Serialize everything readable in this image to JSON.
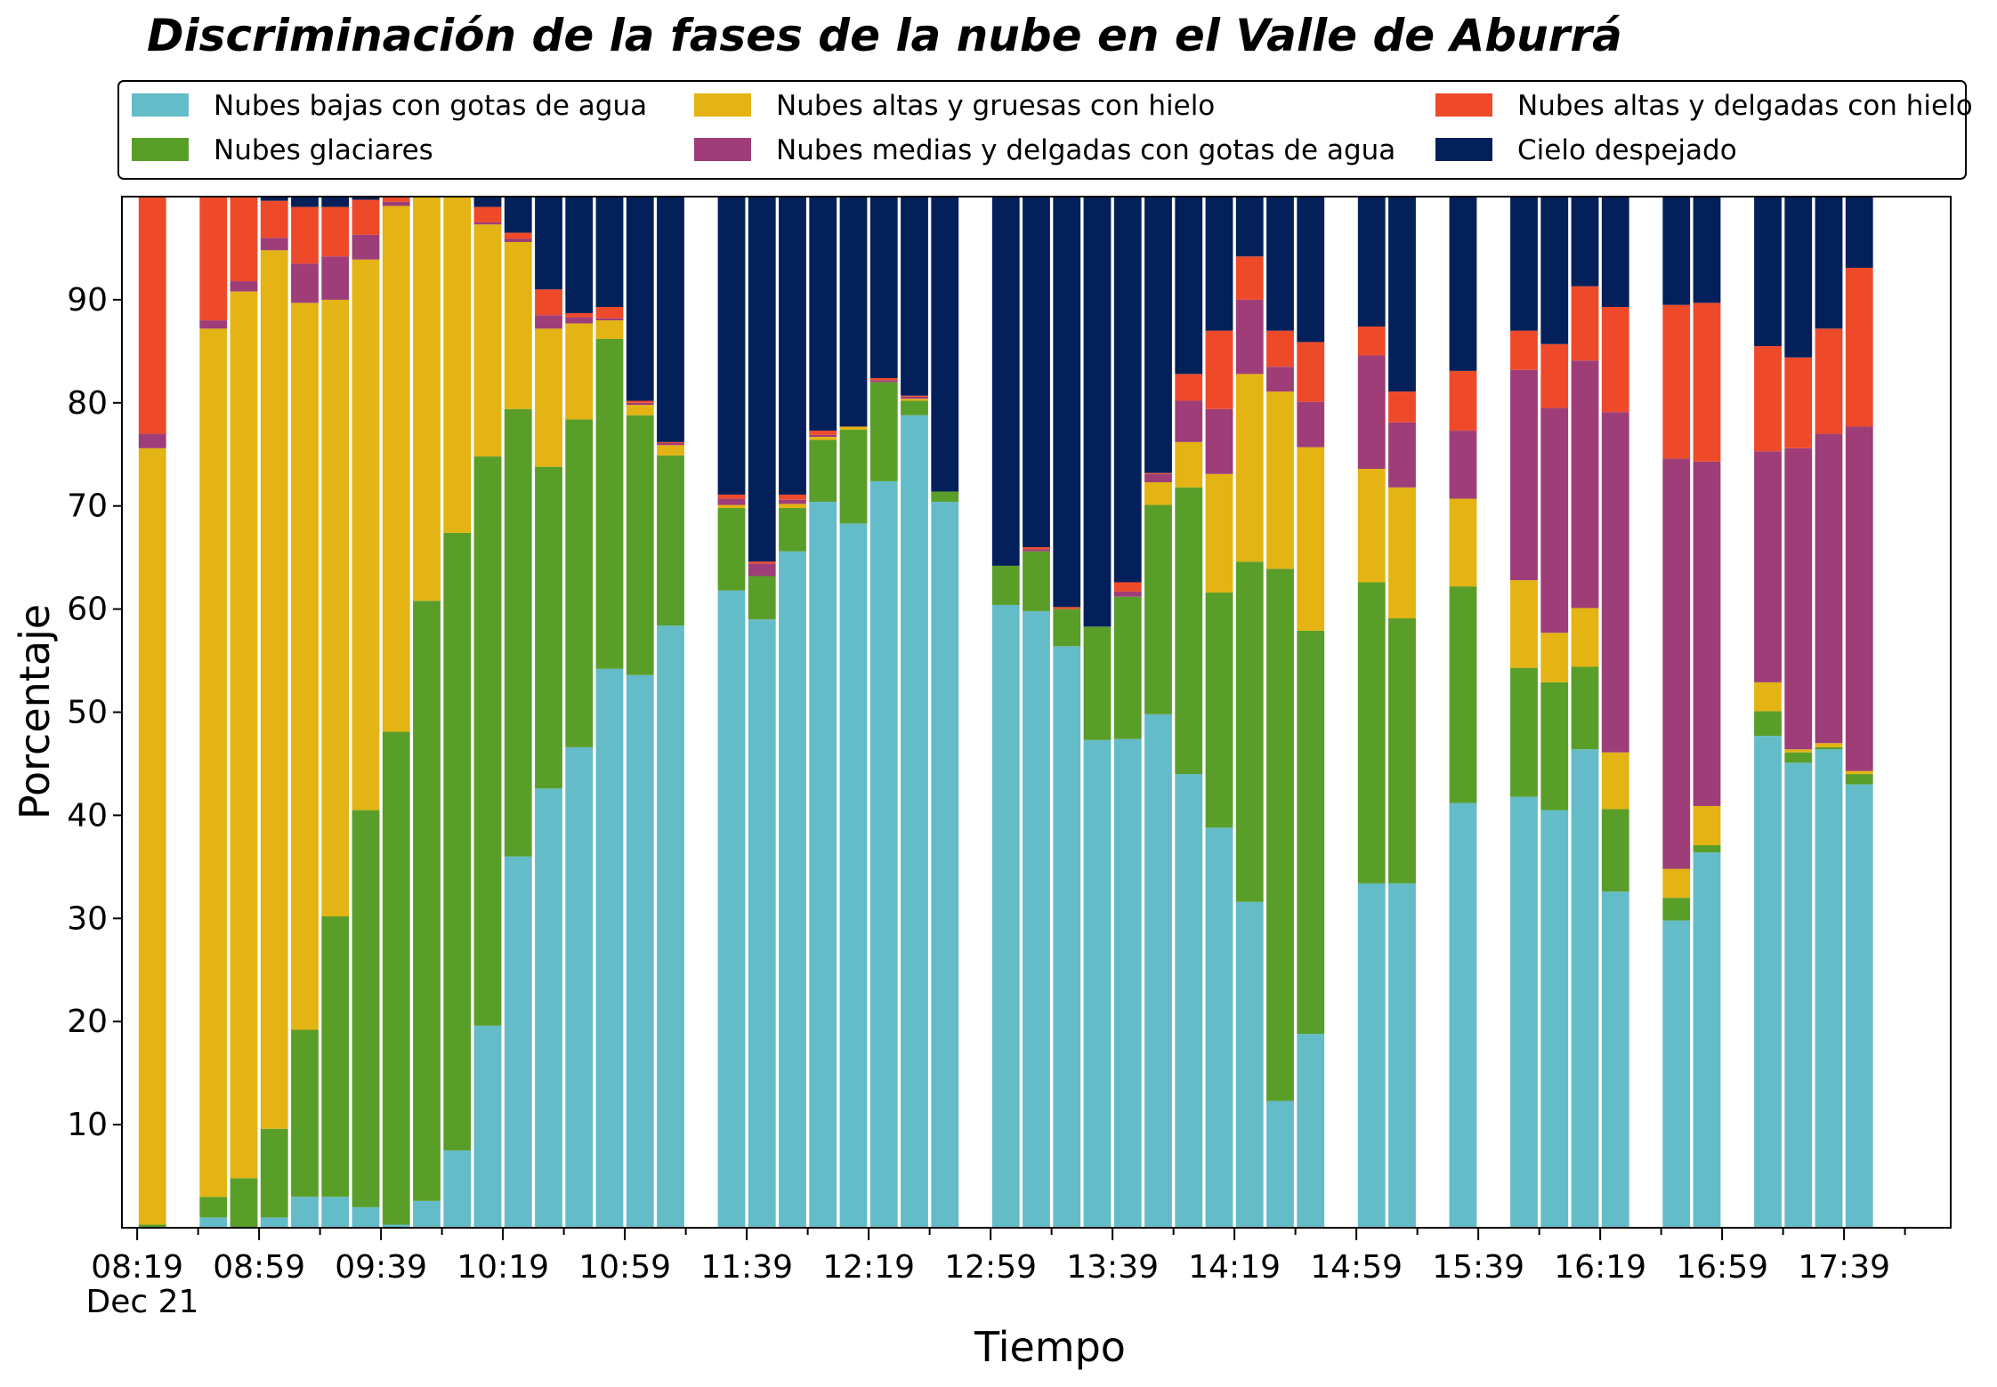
{
  "chart_data": {
    "type": "bar",
    "stacked": true,
    "title": "Discriminación de la fases de la nube en el Valle de Aburrá",
    "xlabel": "Tiempo",
    "ylabel": "Porcentaje",
    "ylim": [
      0,
      100
    ],
    "yticks": [
      10,
      20,
      30,
      40,
      50,
      60,
      70,
      80,
      90
    ],
    "x_tick_labels": [
      "08:19",
      "08:59",
      "09:39",
      "10:19",
      "10:59",
      "11:39",
      "12:19",
      "12:59",
      "13:39",
      "14:19",
      "14:59",
      "15:39",
      "16:19",
      "16:59",
      "17:39"
    ],
    "x_date_label": "Dec 21",
    "x_range": [
      "08:14",
      "18:14"
    ],
    "bar_interval_minutes": 10,
    "legend_position": "top",
    "series": [
      {
        "name": "Nubes bajas con gotas de agua",
        "color": "#64bcc8"
      },
      {
        "name": "Nubes glaciares",
        "color": "#5a9e2a"
      },
      {
        "name": "Nubes altas y gruesas con hielo",
        "color": "#e3b413"
      },
      {
        "name": "Nubes medias y delgadas con gotas de agua",
        "color": "#9e3d78"
      },
      {
        "name": "Nubes altas y delgadas con hielo",
        "color": "#ee4a2a"
      },
      {
        "name": "Cielo despejado",
        "color": "#04205a"
      }
    ],
    "bars": [
      {
        "time": "08:24",
        "values": [
          0,
          0.3,
          75.3,
          1.4,
          23.0,
          0
        ]
      },
      {
        "time": "08:34",
        "values": [
          0,
          0,
          0,
          0,
          0,
          0
        ]
      },
      {
        "time": "08:44",
        "values": [
          1.0,
          2.0,
          84.2,
          0.8,
          12.0,
          0
        ]
      },
      {
        "time": "08:54",
        "values": [
          0,
          4.8,
          86.0,
          1.0,
          8.2,
          0
        ]
      },
      {
        "time": "09:04",
        "values": [
          1.0,
          8.6,
          85.2,
          1.2,
          3.6,
          0.4
        ]
      },
      {
        "time": "09:14",
        "values": [
          3.0,
          16.2,
          70.5,
          3.8,
          5.5,
          1.0
        ]
      },
      {
        "time": "09:24",
        "values": [
          3.0,
          27.2,
          59.8,
          4.2,
          4.8,
          1.0
        ]
      },
      {
        "time": "09:34",
        "values": [
          2.0,
          38.5,
          53.4,
          2.4,
          3.4,
          0.3
        ]
      },
      {
        "time": "09:44",
        "values": [
          0.3,
          47.8,
          51.0,
          0.4,
          0.5,
          0
        ]
      },
      {
        "time": "09:54",
        "values": [
          2.6,
          58.2,
          39.2,
          0,
          0,
          0
        ]
      },
      {
        "time": "10:04",
        "values": [
          7.5,
          59.9,
          32.6,
          0,
          0,
          0
        ]
      },
      {
        "time": "10:14",
        "values": [
          19.6,
          55.2,
          22.5,
          0.2,
          1.5,
          1.0
        ]
      },
      {
        "time": "10:24",
        "values": [
          36.0,
          43.4,
          16.2,
          0.3,
          0.6,
          3.5
        ]
      },
      {
        "time": "10:34",
        "values": [
          42.6,
          31.2,
          13.4,
          1.3,
          2.5,
          9.0
        ]
      },
      {
        "time": "10:44",
        "values": [
          46.6,
          31.8,
          9.3,
          0.6,
          0.4,
          11.3
        ]
      },
      {
        "time": "10:54",
        "values": [
          54.2,
          32.0,
          1.8,
          0.2,
          1.1,
          10.7
        ]
      },
      {
        "time": "11:04",
        "values": [
          53.6,
          25.2,
          1.0,
          0.2,
          0.2,
          19.8
        ]
      },
      {
        "time": "11:14",
        "values": [
          58.4,
          16.5,
          1.0,
          0.2,
          0.1,
          23.8
        ]
      },
      {
        "time": "11:24",
        "values": [
          0,
          0,
          0,
          0,
          0,
          0
        ]
      },
      {
        "time": "11:34",
        "values": [
          61.8,
          8.0,
          0.3,
          0.6,
          0.4,
          28.9
        ]
      },
      {
        "time": "11:44",
        "values": [
          59.0,
          4.2,
          0,
          1.2,
          0.2,
          35.4
        ]
      },
      {
        "time": "11:54",
        "values": [
          65.6,
          4.2,
          0.4,
          0.4,
          0.5,
          28.9
        ]
      },
      {
        "time": "12:04",
        "values": [
          70.4,
          6.0,
          0.3,
          0.2,
          0.4,
          22.7
        ]
      },
      {
        "time": "12:14",
        "values": [
          68.3,
          9.1,
          0.3,
          0,
          0,
          22.3
        ]
      },
      {
        "time": "12:24",
        "values": [
          72.4,
          9.6,
          0,
          0.2,
          0.2,
          17.6
        ]
      },
      {
        "time": "12:34",
        "values": [
          78.8,
          1.4,
          0.2,
          0.2,
          0.1,
          19.3
        ]
      },
      {
        "time": "12:44",
        "values": [
          70.4,
          1.0,
          0,
          0,
          0,
          28.6
        ]
      },
      {
        "time": "12:54",
        "values": [
          0,
          0,
          0,
          0,
          0,
          0
        ]
      },
      {
        "time": "13:04",
        "values": [
          60.4,
          3.8,
          0,
          0,
          0,
          35.8
        ]
      },
      {
        "time": "13:14",
        "values": [
          59.8,
          5.8,
          0,
          0.2,
          0.2,
          34.0
        ]
      },
      {
        "time": "13:24",
        "values": [
          56.4,
          3.6,
          0,
          0,
          0.2,
          39.8
        ]
      },
      {
        "time": "13:34",
        "values": [
          47.3,
          11.0,
          0,
          0,
          0,
          41.7
        ]
      },
      {
        "time": "13:44",
        "values": [
          47.4,
          13.8,
          0,
          0.5,
          0.9,
          37.4
        ]
      },
      {
        "time": "13:54",
        "values": [
          49.8,
          20.3,
          2.2,
          0.8,
          0.1,
          26.8
        ]
      },
      {
        "time": "14:04",
        "values": [
          44.0,
          27.8,
          4.4,
          4.0,
          2.6,
          17.2
        ]
      },
      {
        "time": "14:14",
        "values": [
          38.8,
          22.8,
          11.5,
          6.3,
          7.6,
          13.0
        ]
      },
      {
        "time": "14:24",
        "values": [
          31.6,
          33.0,
          18.2,
          7.2,
          4.2,
          5.8
        ]
      },
      {
        "time": "14:34",
        "values": [
          12.3,
          51.6,
          17.2,
          2.4,
          3.5,
          13.0
        ]
      },
      {
        "time": "14:44",
        "values": [
          18.8,
          39.1,
          17.8,
          4.4,
          5.8,
          14.1
        ]
      },
      {
        "time": "14:54",
        "values": [
          0,
          0,
          0,
          0,
          0,
          0
        ]
      },
      {
        "time": "15:04",
        "values": [
          33.4,
          29.2,
          11.0,
          11.0,
          2.8,
          12.6
        ]
      },
      {
        "time": "15:14",
        "values": [
          33.4,
          25.7,
          12.7,
          6.3,
          3.0,
          18.9
        ]
      },
      {
        "time": "15:24",
        "values": [
          0,
          0,
          0,
          0,
          0,
          0
        ]
      },
      {
        "time": "15:34",
        "values": [
          41.2,
          21.0,
          8.5,
          6.6,
          5.8,
          16.9
        ]
      },
      {
        "time": "15:44",
        "values": [
          0,
          0,
          0,
          0,
          0,
          0
        ]
      },
      {
        "time": "15:54",
        "values": [
          41.8,
          12.5,
          8.5,
          20.4,
          3.8,
          13.0
        ]
      },
      {
        "time": "16:04",
        "values": [
          40.5,
          12.4,
          4.8,
          21.8,
          6.2,
          14.3
        ]
      },
      {
        "time": "16:14",
        "values": [
          46.4,
          8.0,
          5.7,
          24.0,
          7.2,
          8.7
        ]
      },
      {
        "time": "16:24",
        "values": [
          32.6,
          8.0,
          5.5,
          33.0,
          10.2,
          10.7
        ]
      },
      {
        "time": "16:34",
        "values": [
          0,
          0,
          0,
          0,
          0,
          0
        ]
      },
      {
        "time": "16:44",
        "values": [
          29.8,
          2.2,
          2.8,
          39.8,
          14.9,
          10.5
        ]
      },
      {
        "time": "16:54",
        "values": [
          36.4,
          0.7,
          3.8,
          33.4,
          15.4,
          10.3
        ]
      },
      {
        "time": "17:04",
        "values": [
          0,
          0,
          0,
          0,
          0,
          0
        ]
      },
      {
        "time": "17:14",
        "values": [
          47.7,
          2.4,
          2.8,
          22.4,
          10.2,
          14.5
        ]
      },
      {
        "time": "17:24",
        "values": [
          45.1,
          1.0,
          0.3,
          29.2,
          8.8,
          15.6
        ]
      },
      {
        "time": "17:34",
        "values": [
          46.4,
          0.2,
          0.4,
          30.0,
          10.2,
          12.8
        ]
      },
      {
        "time": "17:44",
        "values": [
          43.0,
          1.0,
          0.3,
          33.4,
          15.4,
          6.9
        ]
      }
    ]
  }
}
